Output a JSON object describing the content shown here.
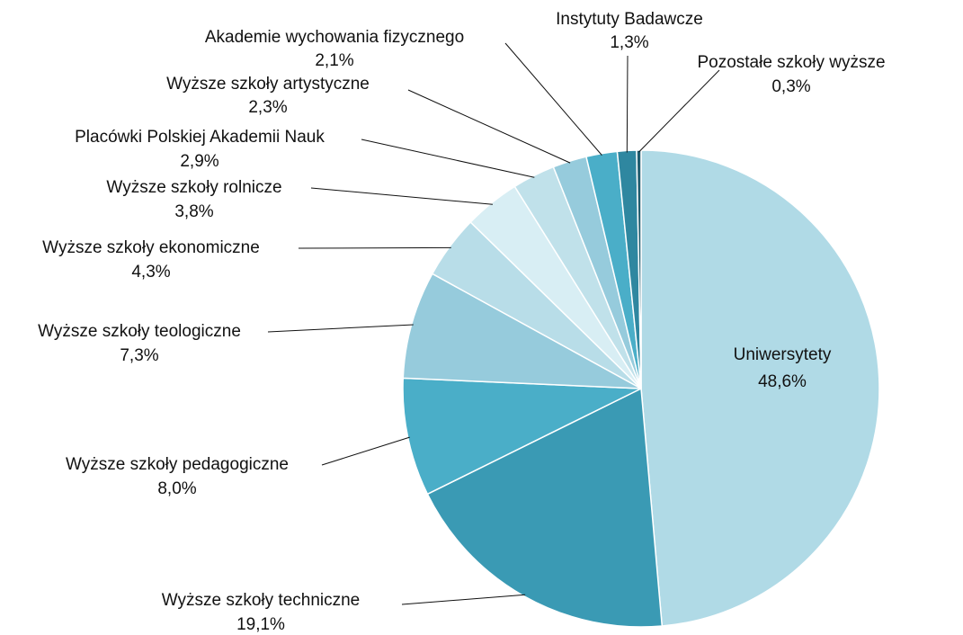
{
  "chart_data": {
    "type": "pie",
    "categories": [
      "Uniwersytety",
      "Wyższe szkoły techniczne",
      "Wyższe szkoły pedagogiczne",
      "Wyższe szkoły teologiczne",
      "Wyższe szkoły ekonomiczne",
      "Wyższe szkoły rolnicze",
      "Placówki Polskiej Akademii Nauk",
      "Wyższe szkoły artystyczne",
      "Akademie wychowania fizycznego",
      "Instytuty Badawcze",
      "Pozostałe szkoły wyższe"
    ],
    "values": [
      48.6,
      19.1,
      8.0,
      7.3,
      4.3,
      3.8,
      2.9,
      2.3,
      2.1,
      1.3,
      0.3
    ],
    "value_labels": [
      "48,6%",
      "19,1%",
      "8,0%",
      "7,3%",
      "4,3%",
      "3,8%",
      "2,9%",
      "2,3%",
      "2,1%",
      "1,3%",
      "0,3%"
    ],
    "colors": [
      "#b0dae6",
      "#3a9ab4",
      "#4aaec8",
      "#96cbdc",
      "#b8dde8",
      "#d8eef4",
      "#c0e1ea",
      "#96cbdc",
      "#4aaec8",
      "#2f87a0",
      "#1f5c6e"
    ]
  }
}
